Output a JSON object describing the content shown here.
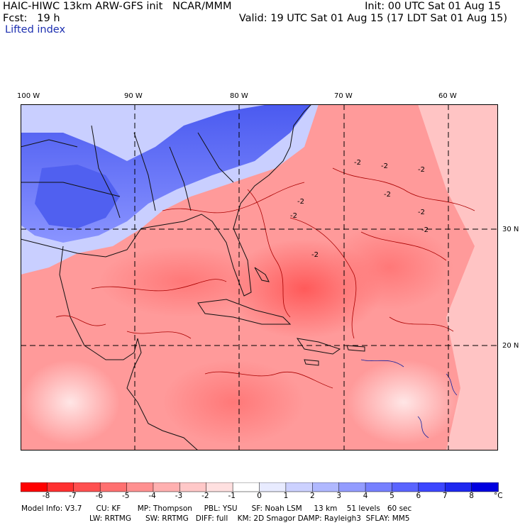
{
  "header": {
    "title": "HAIC-HIWC 13km ARW-GFS init   NCAR/MMM",
    "init": "Init: 00 UTC Sat 01 Aug 15",
    "forecast": "Fcst:   19 h",
    "valid": "Valid: 19 UTC Sat 01 Aug 15 (17 LDT Sat 01 Aug 15)",
    "field": "Lifted index"
  },
  "map": {
    "lon_labels": [
      "100 W",
      "90 W",
      "80 W",
      "70 W",
      "60 W"
    ],
    "lat_labels": [
      "30 N",
      "20 N"
    ],
    "contour_labels": [
      "-2",
      "-2",
      "-2",
      "-2",
      "-2",
      "-2",
      "-2",
      "-2",
      "-2"
    ]
  },
  "colorbar": {
    "colors": [
      "#ff0000",
      "#ff3030",
      "#ff5050",
      "#ff7070",
      "#ff9090",
      "#ffb0b0",
      "#ffc8c8",
      "#ffe0e0",
      "#ffffff",
      "#e8ebff",
      "#ccd1ff",
      "#b0b8ff",
      "#939cff",
      "#7680ff",
      "#5a64ff",
      "#3c46ff",
      "#1e28f0",
      "#0000e0"
    ],
    "labels": [
      "-8",
      "-7",
      "-6",
      "-5",
      "-4",
      "-3",
      "-2",
      "-1",
      "0",
      "1",
      "2",
      "3",
      "4",
      "5",
      "6",
      "7",
      "8"
    ],
    "unit": "°C"
  },
  "model_info": {
    "line1": "Model Info: V3.7      CU: KF       MP: Thompson     PBL: YSU      SF: Noah LSM     13 km    51 levels   60 sec",
    "line2": "LW: RRTMG      SW: RRTMG   DIFF: full    KM: 2D Smagor DAMP: Rayleigh3  SFLAY: MM5"
  }
}
